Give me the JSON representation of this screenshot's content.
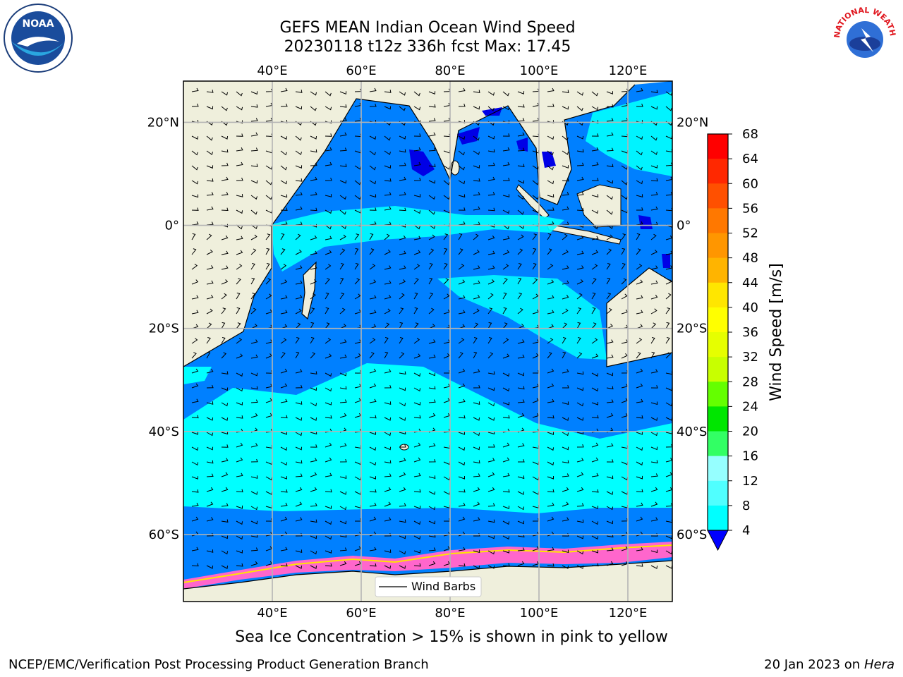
{
  "title": {
    "line1": "GEFS MEAN Indian Ocean Wind Speed",
    "line2": "20230118 t12z 336h fcst   Max: 17.45"
  },
  "map": {
    "lon_ticks": [
      "40°E",
      "60°E",
      "80°E",
      "100°E",
      "120°E"
    ],
    "lat_ticks": [
      "20°N",
      "0°",
      "20°S",
      "40°S",
      "60°S"
    ],
    "lon_values": [
      40,
      60,
      80,
      100,
      120
    ],
    "lat_values": [
      20,
      0,
      -20,
      -40,
      -60
    ],
    "extent": {
      "lon_min": 20,
      "lon_max": 130,
      "lat_min": -73,
      "lat_max": 28
    },
    "legend_label": "Wind Barbs",
    "land_color": "#efefdc",
    "ocean_colors": [
      "#0000e6",
      "#0080ff",
      "#00ffff"
    ]
  },
  "colorbar": {
    "label": "Wind Speed [m/s]",
    "ticks": [
      "68",
      "64",
      "60",
      "56",
      "52",
      "48",
      "44",
      "40",
      "36",
      "32",
      "28",
      "24",
      "20",
      "16",
      "12",
      "8",
      "4"
    ],
    "colors": [
      "#ff0000",
      "#ff2800",
      "#ff5000",
      "#ff7800",
      "#ff9600",
      "#ffb400",
      "#ffe600",
      "#ffff00",
      "#e6ff00",
      "#c8ff00",
      "#64ff00",
      "#00e600",
      "#32ff64",
      "#96ffff",
      "#50ffff",
      "#00ffff",
      "#0080ff"
    ],
    "under_color": "#0000ff"
  },
  "note": "Sea Ice Concentration > 15% is shown in pink to yellow",
  "footer": {
    "left": "NCEP/EMC/Verification Post Processing Product Generation Branch",
    "date": "20 Jan 2023 on ",
    "machine": "Hera"
  },
  "logos": {
    "noaa": "NOAA",
    "nws_text": "NATIONAL WEATHER SERVICE"
  }
}
